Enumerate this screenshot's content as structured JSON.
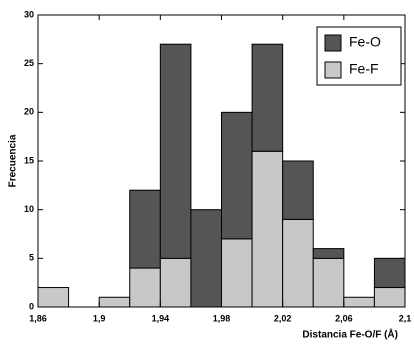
{
  "chart_data": {
    "type": "histogram",
    "xlabel": "Distancia Fe-O/F (Å)",
    "ylabel": "Frecuencia",
    "bins": [
      1.86,
      1.88,
      1.9,
      1.92,
      1.94,
      1.96,
      1.98,
      2.0,
      2.02,
      2.04,
      2.06,
      2.08,
      2.1
    ],
    "series": [
      {
        "name": "Fe-O",
        "color": "#555555",
        "values": [
          0,
          0,
          0,
          8,
          22,
          10,
          13,
          11,
          6,
          1,
          0,
          3
        ]
      },
      {
        "name": "Fe-F",
        "color": "#c8c8c8",
        "values": [
          2,
          0,
          1,
          4,
          5,
          0,
          7,
          16,
          9,
          5,
          1,
          2
        ]
      }
    ],
    "xlim": [
      1.86,
      2.1
    ],
    "xticks": [
      {
        "value": 1.86,
        "label": "1,86"
      },
      {
        "value": 1.9,
        "label": "1,9"
      },
      {
        "value": 1.94,
        "label": "1,94"
      },
      {
        "value": 1.98,
        "label": "1,98"
      },
      {
        "value": 2.02,
        "label": "2,02"
      },
      {
        "value": 2.06,
        "label": "2,06"
      },
      {
        "value": 2.1,
        "label": "2,1"
      }
    ],
    "ylim": [
      0,
      30
    ],
    "yticks": [
      0,
      5,
      10,
      15,
      20,
      25,
      30
    ],
    "legend": "top-right"
  }
}
